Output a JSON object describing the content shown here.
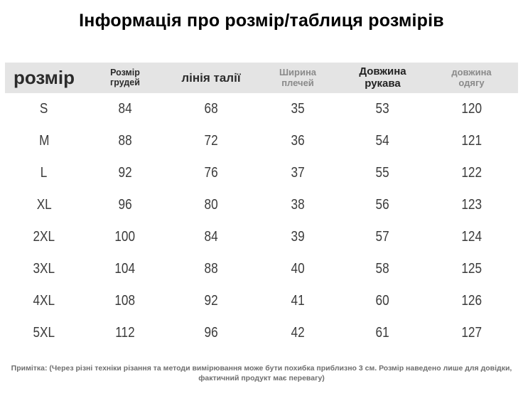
{
  "chart_data": {
    "type": "table",
    "title": "Інформація про розмір/таблиця розмірів",
    "columns": [
      "розмір",
      "Розмір грудей",
      "лінія талії",
      "Ширина плечей",
      "Довжина рукава",
      "довжина одягу"
    ],
    "rows": [
      {
        "label": "S",
        "values": [
          84,
          68,
          35,
          53,
          120
        ]
      },
      {
        "label": "M",
        "values": [
          88,
          72,
          36,
          54,
          121
        ]
      },
      {
        "label": "L",
        "values": [
          92,
          76,
          37,
          55,
          122
        ]
      },
      {
        "label": "XL",
        "values": [
          96,
          80,
          38,
          56,
          123
        ]
      },
      {
        "label": "2XL",
        "values": [
          100,
          84,
          39,
          57,
          124
        ]
      },
      {
        "label": "3XL",
        "values": [
          104,
          88,
          40,
          58,
          125
        ]
      },
      {
        "label": "4XL",
        "values": [
          108,
          92,
          41,
          60,
          126
        ]
      },
      {
        "label": "5XL",
        "values": [
          112,
          96,
          42,
          61,
          127
        ]
      }
    ]
  },
  "note": {
    "line1": "Примітка: (Через різні техніки різання та методи вимірювання може бути похибка приблизно 3 см. Розмір наведено лише для довідки,",
    "line2": "фактичний продукт має перевагу)"
  },
  "colors": {
    "header_bg": "#e4e4e4",
    "header_text_dark": "#2b2b2b",
    "header_text_muted": "#8a8a8a",
    "body_text": "#3b3b3b",
    "note_text": "#6e6e6e",
    "title_text": "#000000",
    "page_bg": "#ffffff"
  }
}
